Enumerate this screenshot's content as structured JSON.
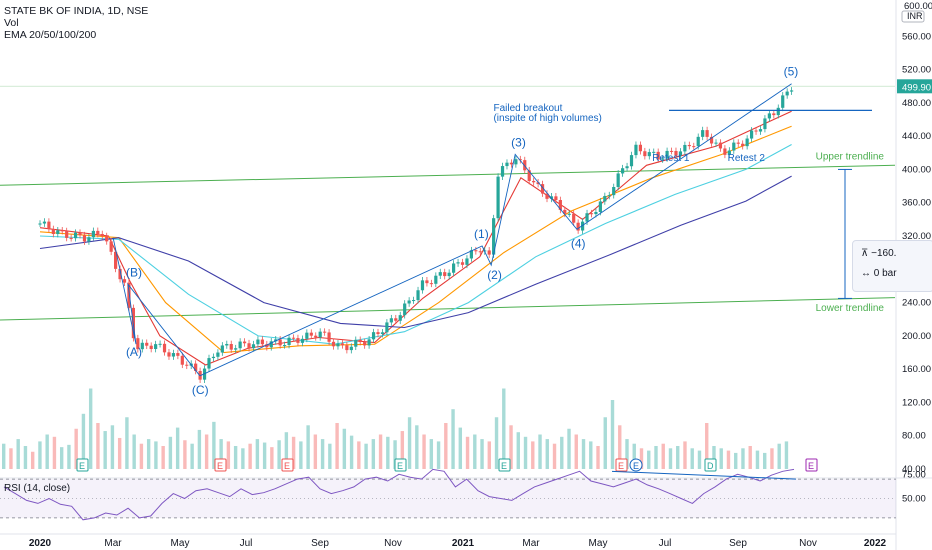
{
  "header": {
    "symbol": "STATE BK OF INDIA, 1D, NSE",
    "vol_label": "Vol",
    "ema_label": "EMA 20/50/100/200"
  },
  "colors": {
    "up": "#26a69a",
    "down": "#ef5350",
    "ema20": "#e53935",
    "ema50": "#ff9800",
    "ema100": "#4dd0e1",
    "ema200": "#3f3fa8",
    "trend": "#4caf50",
    "wave": "#1565c0",
    "rsi": "#7e57c2"
  },
  "chart_data": {
    "type": "line",
    "title": "STATE BK OF INDIA, 1D, NSE",
    "currency": "INR",
    "last_price": "499.90",
    "ylim": [
      40,
      600
    ],
    "y_ticks": [
      "600.00",
      "560.00",
      "520.00",
      "480.00",
      "440.00",
      "400.00",
      "360.00",
      "320.00",
      "280.00",
      "240.00",
      "200.00",
      "160.00",
      "120.00",
      "80.00",
      "40.00"
    ],
    "x_ticks": [
      "2020",
      "Mar",
      "May",
      "Jul",
      "Sep",
      "Nov",
      "2021",
      "Mar",
      "May",
      "Jul",
      "Sep",
      "Nov",
      "2022"
    ],
    "price_close": [
      {
        "x": "2020-01-01",
        "y": 335
      },
      {
        "x": "2020-01-20",
        "y": 322
      },
      {
        "x": "2020-02-10",
        "y": 318
      },
      {
        "x": "2020-02-25",
        "y": 325
      },
      {
        "x": "2020-03-05",
        "y": 290
      },
      {
        "x": "2020-03-15",
        "y": 260
      },
      {
        "x": "2020-03-25",
        "y": 185
      },
      {
        "x": "2020-04-10",
        "y": 190
      },
      {
        "x": "2020-05-10",
        "y": 165
      },
      {
        "x": "2020-05-20",
        "y": 152
      },
      {
        "x": "2020-06-05",
        "y": 185
      },
      {
        "x": "2020-07-01",
        "y": 190
      },
      {
        "x": "2020-08-01",
        "y": 192
      },
      {
        "x": "2020-08-25",
        "y": 200
      },
      {
        "x": "2020-09-01",
        "y": 205
      },
      {
        "x": "2020-09-20",
        "y": 185
      },
      {
        "x": "2020-10-15",
        "y": 195
      },
      {
        "x": "2020-11-10",
        "y": 225
      },
      {
        "x": "2020-12-01",
        "y": 262
      },
      {
        "x": "2020-12-20",
        "y": 275
      },
      {
        "x": "2021-01-10",
        "y": 295
      },
      {
        "x": "2021-01-22",
        "y": 308
      },
      {
        "x": "2021-01-28",
        "y": 290
      },
      {
        "x": "2021-02-05",
        "y": 395
      },
      {
        "x": "2021-02-20",
        "y": 415
      },
      {
        "x": "2021-03-10",
        "y": 380
      },
      {
        "x": "2021-04-01",
        "y": 355
      },
      {
        "x": "2021-04-15",
        "y": 330
      },
      {
        "x": "2021-05-10",
        "y": 365
      },
      {
        "x": "2021-06-05",
        "y": 425
      },
      {
        "x": "2021-06-25",
        "y": 415
      },
      {
        "x": "2021-07-20",
        "y": 425
      },
      {
        "x": "2021-08-05",
        "y": 445
      },
      {
        "x": "2021-08-20",
        "y": 420
      },
      {
        "x": "2021-09-10",
        "y": 435
      },
      {
        "x": "2021-10-05",
        "y": 470
      },
      {
        "x": "2021-10-20",
        "y": 499.9
      }
    ],
    "series": [
      {
        "name": "EMA 20",
        "values": [
          {
            "x": "2020-01-01",
            "y": 330
          },
          {
            "x": "2020-03-01",
            "y": 320
          },
          {
            "x": "2020-03-20",
            "y": 265
          },
          {
            "x": "2020-04-15",
            "y": 200
          },
          {
            "x": "2020-05-25",
            "y": 165
          },
          {
            "x": "2020-07-01",
            "y": 185
          },
          {
            "x": "2020-09-01",
            "y": 198
          },
          {
            "x": "2020-10-20",
            "y": 192
          },
          {
            "x": "2020-12-01",
            "y": 245
          },
          {
            "x": "2021-01-20",
            "y": 295
          },
          {
            "x": "2021-02-25",
            "y": 390
          },
          {
            "x": "2021-04-20",
            "y": 340
          },
          {
            "x": "2021-06-15",
            "y": 405
          },
          {
            "x": "2021-08-15",
            "y": 428
          },
          {
            "x": "2021-10-20",
            "y": 470
          }
        ]
      },
      {
        "name": "EMA 50",
        "values": [
          {
            "x": "2020-01-01",
            "y": 325
          },
          {
            "x": "2020-03-10",
            "y": 318
          },
          {
            "x": "2020-04-20",
            "y": 240
          },
          {
            "x": "2020-06-10",
            "y": 180
          },
          {
            "x": "2020-08-15",
            "y": 188
          },
          {
            "x": "2020-10-20",
            "y": 190
          },
          {
            "x": "2020-12-15",
            "y": 240
          },
          {
            "x": "2021-02-10",
            "y": 300
          },
          {
            "x": "2021-04-10",
            "y": 350
          },
          {
            "x": "2021-06-20",
            "y": 390
          },
          {
            "x": "2021-08-20",
            "y": 418
          },
          {
            "x": "2021-10-20",
            "y": 452
          }
        ]
      },
      {
        "name": "EMA 100",
        "values": [
          {
            "x": "2020-01-01",
            "y": 320
          },
          {
            "x": "2020-03-10",
            "y": 316
          },
          {
            "x": "2020-05-10",
            "y": 250
          },
          {
            "x": "2020-07-10",
            "y": 200
          },
          {
            "x": "2020-09-15",
            "y": 190
          },
          {
            "x": "2020-11-15",
            "y": 205
          },
          {
            "x": "2021-01-10",
            "y": 240
          },
          {
            "x": "2021-03-10",
            "y": 295
          },
          {
            "x": "2021-05-10",
            "y": 335
          },
          {
            "x": "2021-07-10",
            "y": 370
          },
          {
            "x": "2021-09-10",
            "y": 400
          },
          {
            "x": "2021-10-20",
            "y": 430
          }
        ]
      },
      {
        "name": "EMA 200",
        "values": [
          {
            "x": "2020-01-01",
            "y": 305
          },
          {
            "x": "2020-03-10",
            "y": 318
          },
          {
            "x": "2020-05-10",
            "y": 290
          },
          {
            "x": "2020-07-15",
            "y": 240
          },
          {
            "x": "2020-09-20",
            "y": 215
          },
          {
            "x": "2020-11-15",
            "y": 210
          },
          {
            "x": "2021-01-10",
            "y": 228
          },
          {
            "x": "2021-03-10",
            "y": 262
          },
          {
            "x": "2021-05-15",
            "y": 298
          },
          {
            "x": "2021-07-15",
            "y": 333
          },
          {
            "x": "2021-09-10",
            "y": 362
          },
          {
            "x": "2021-10-20",
            "y": 392
          }
        ]
      }
    ],
    "volume": [
      22,
      18,
      26,
      20,
      15,
      24,
      30,
      28,
      19,
      21,
      35,
      48,
      70,
      40,
      33,
      38,
      27,
      45,
      30,
      22,
      26,
      24,
      20,
      28,
      36,
      25,
      22,
      34,
      30,
      41,
      26,
      24,
      20,
      18,
      22,
      26,
      23,
      19,
      25,
      32,
      28,
      24,
      38,
      30,
      26,
      22,
      40,
      35,
      29,
      24,
      22,
      26,
      30,
      28,
      25,
      33,
      45,
      38,
      30,
      26,
      24,
      40,
      52,
      36,
      28,
      30,
      26,
      24,
      45,
      70,
      38,
      32,
      28,
      24,
      30,
      26,
      22,
      28,
      35,
      30,
      26,
      24,
      20,
      45,
      60,
      38,
      26,
      22,
      18,
      16,
      20,
      22,
      18,
      20,
      24,
      18,
      16,
      40,
      20,
      18,
      16,
      14,
      18,
      20,
      16,
      14,
      18,
      22,
      24
    ],
    "rsi_label": "RSI (14, close)",
    "rsi_ticks": [
      "75.00",
      "50.00"
    ],
    "rsi": [
      62,
      55,
      48,
      45,
      50,
      44,
      42,
      28,
      30,
      35,
      33,
      40,
      30,
      32,
      45,
      55,
      50,
      58,
      60,
      56,
      52,
      60,
      54,
      56,
      60,
      65,
      70,
      72,
      60,
      55,
      58,
      62,
      70,
      72,
      68,
      75,
      72,
      70,
      80,
      78,
      62,
      70,
      58,
      52,
      50,
      48,
      55,
      62,
      66,
      70,
      74,
      78,
      68,
      65,
      62,
      66,
      70,
      64,
      60,
      55,
      50,
      45,
      55,
      62,
      70,
      75,
      72,
      68,
      74,
      78,
      80
    ],
    "annotations": [
      {
        "text": "(A)",
        "x": "2020-03-25",
        "y": 190
      },
      {
        "text": "(B)",
        "x": "2020-03-18",
        "y": 262
      },
      {
        "text": "(C)",
        "x": "2020-05-20",
        "y": 152
      },
      {
        "text": "(1)",
        "x": "2021-01-22",
        "y": 308
      },
      {
        "text": "(2)",
        "x": "2021-01-30",
        "y": 285
      },
      {
        "text": "(3)",
        "x": "2021-02-20",
        "y": 418
      },
      {
        "text": "(4)",
        "x": "2021-04-15",
        "y": 328
      },
      {
        "text": "(5)",
        "x": "2021-10-20",
        "y": 503
      },
      {
        "text": "Failed breakout",
        "x": "2021-02-01",
        "y": 470
      },
      {
        "text": "(inspite of high volumes)",
        "x": "2021-02-01",
        "y": 458
      },
      {
        "text": "Retest 1",
        "x": "2021-06-20",
        "y": 410
      },
      {
        "text": "Retest 2",
        "x": "2021-08-25",
        "y": 410
      },
      {
        "text": "Upper trendline",
        "x": "2021-11-10",
        "y": 412
      },
      {
        "text": "Lower trendline",
        "x": "2021-11-10",
        "y": 230
      }
    ],
    "event_markers": [
      "E",
      "E",
      "E",
      "E",
      "E",
      "E",
      "E",
      "D",
      "E",
      "E"
    ],
    "measure_tool": {
      "price_change": "−160.",
      "bars": "0 bar"
    },
    "grid": false,
    "legend": "top-left"
  }
}
